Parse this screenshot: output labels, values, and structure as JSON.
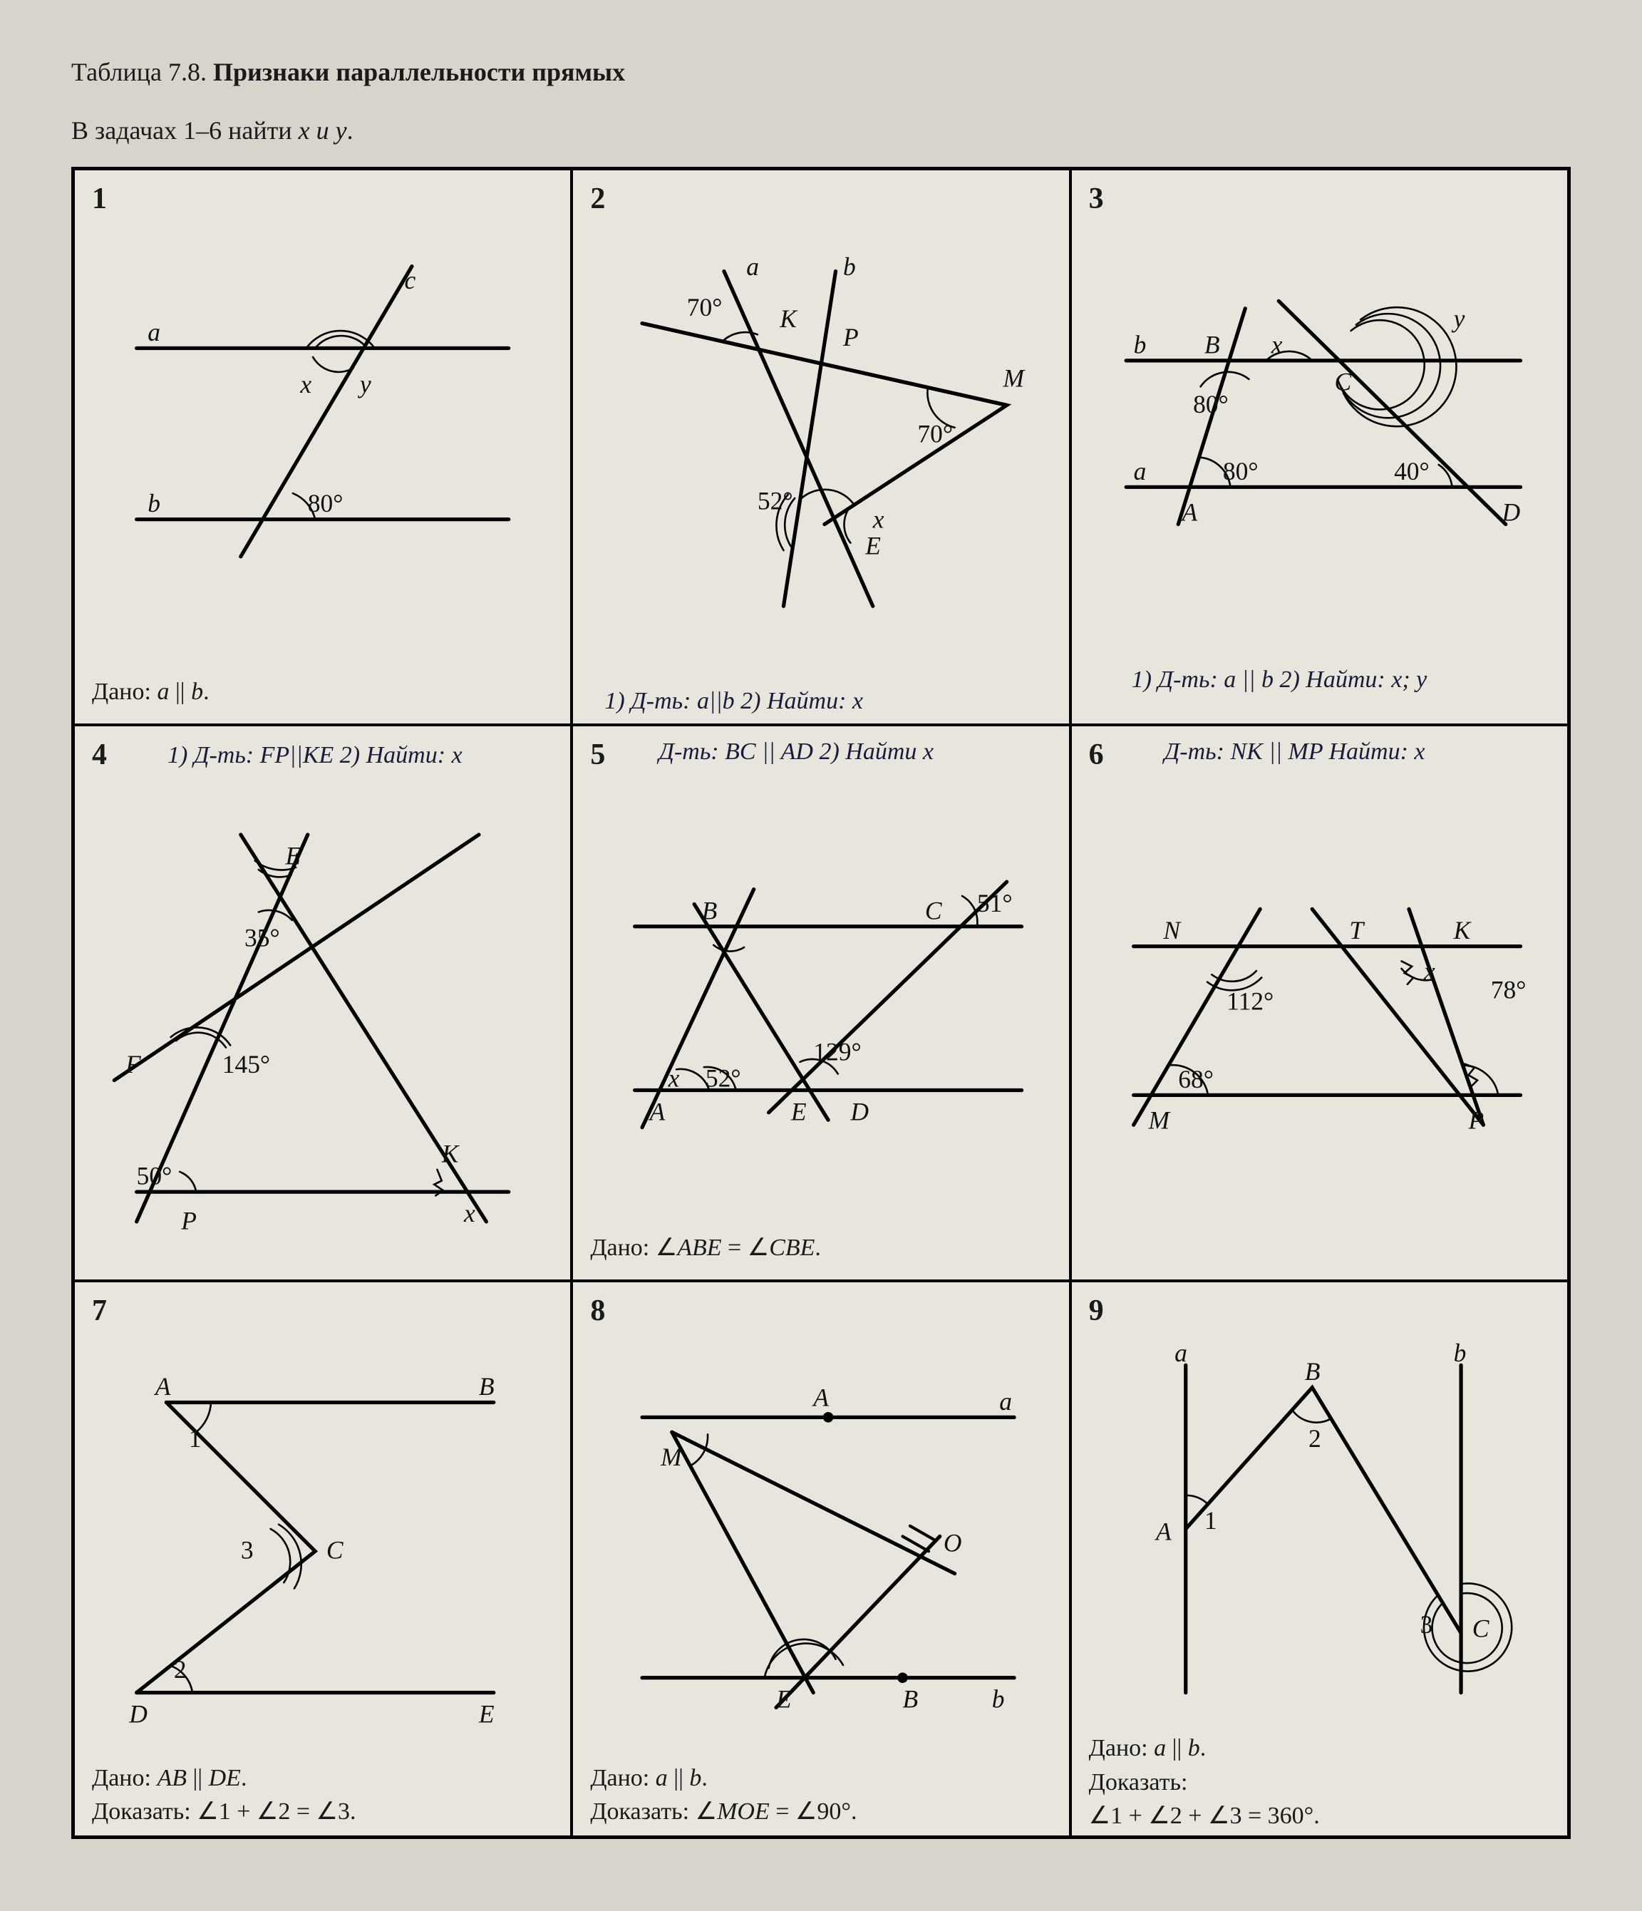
{
  "title_label": "Таблица 7.8.",
  "title_main": "Признаки параллельности прямых",
  "instruction_prefix": "В задачах 1–6 найти ",
  "instruction_vars": "x и y",
  "instruction_suffix": ".",
  "cells": {
    "1": {
      "num": "1",
      "caption_html": "Дано: <span class='it'>a</span> || <span class='it'>b</span>.",
      "labels": {
        "a": "a",
        "b": "b",
        "c": "c",
        "x": "x",
        "y": "y",
        "deg80": "80°"
      }
    },
    "2": {
      "num": "2",
      "labels": {
        "a": "a",
        "b": "b",
        "K": "K",
        "P": "P",
        "M": "M",
        "E": "E",
        "deg70a": "70°",
        "deg70b": "70°",
        "deg52": "52°",
        "x": "x"
      },
      "hand": "1) Д-ть: a||b\n2) Найти: x"
    },
    "3": {
      "num": "3",
      "labels": {
        "a": "a",
        "b": "b",
        "A": "A",
        "B": "B",
        "C": "C",
        "D": "D",
        "x": "x",
        "y": "y",
        "deg80a": "80°",
        "deg80b": "80°",
        "deg40": "40°"
      },
      "hand": "1) Д-ть: a || b\n2) Найти: x; y"
    },
    "4": {
      "num": "4",
      "labels": {
        "E": "E",
        "F": "F",
        "P": "P",
        "K": "K",
        "x": "x",
        "deg35": "35°",
        "deg145": "145°",
        "deg50": "50°"
      },
      "hand": "1) Д-ть: FP||KE\n2) Найти: x"
    },
    "5": {
      "num": "5",
      "caption_html": "Дано: ∠<span class='it'>ABE</span> = ∠<span class='it'>CBE</span>.",
      "labels": {
        "A": "A",
        "B": "B",
        "C": "C",
        "D": "D",
        "E": "E",
        "x": "x",
        "deg51": "51°",
        "deg52": "52°",
        "deg129": "129°"
      },
      "hand": "Д-ть: BC || AD\n2) Найти x"
    },
    "6": {
      "num": "6",
      "labels": {
        "N": "N",
        "T": "T",
        "K": "K",
        "M": "M",
        "P": "P",
        "x": "x",
        "deg112": "112°",
        "deg68": "68°",
        "deg78": "78°"
      },
      "hand": "Д-ть: NK || MP\nНайти: x"
    },
    "7": {
      "num": "7",
      "caption_html": "Дано: <span class='it'>AB</span> || <span class='it'>DE</span>.<br>Доказать: ∠1 + ∠2 = ∠3.",
      "labels": {
        "A": "A",
        "B": "B",
        "C": "C",
        "D": "D",
        "E": "E",
        "n1": "1",
        "n2": "2",
        "n3": "3"
      }
    },
    "8": {
      "num": "8",
      "caption_html": "Дано: <span class='it'>a</span> || <span class='it'>b</span>.<br>Доказать: ∠<span class='it'>MOE</span> = ∠90°.",
      "labels": {
        "a": "a",
        "b": "b",
        "A": "A",
        "B": "B",
        "M": "M",
        "O": "O",
        "E": "E"
      }
    },
    "9": {
      "num": "9",
      "caption_html": "Дано: <span class='it'>a</span> || <span class='it'>b</span>.<br>Доказать:<br>∠1 + ∠2 + ∠3 = 360°.",
      "labels": {
        "a": "a",
        "b": "b",
        "A": "A",
        "B": "B",
        "C": "C",
        "n1": "1",
        "n2": "2",
        "n3": "3"
      }
    }
  }
}
